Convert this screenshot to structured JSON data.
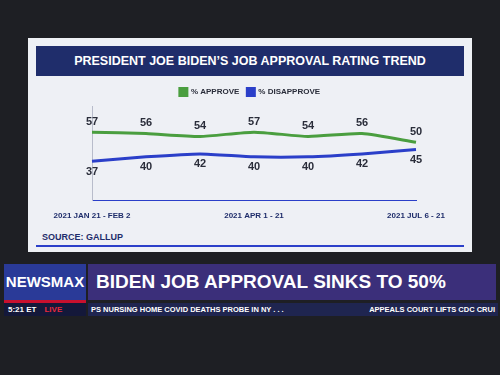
{
  "chart_data": {
    "type": "line",
    "title": "PRESIDENT JOE BIDEN’S JOB APPROVAL RATING TREND",
    "source": "SOURCE: GALLUP",
    "categories": [
      "2021 JAN 21 - FEB 2",
      null,
      null,
      "2021 APR 1 - 21",
      null,
      null,
      "2021 JUL 6 - 21"
    ],
    "series": [
      {
        "name": "% APPROVE",
        "color": "#4a9e3f",
        "values": [
          57,
          56,
          54,
          57,
          54,
          56,
          50
        ]
      },
      {
        "name": "% DISAPPROVE",
        "color": "#2b3fc9",
        "values": [
          37,
          40,
          42,
          40,
          40,
          42,
          45
        ]
      }
    ],
    "ylim": [
      10,
      75
    ],
    "legend": "top",
    "data_labels": true,
    "tick_labels": "x",
    "grid": false
  },
  "banner": {
    "channel": "NEWSMAX",
    "time": "5:21 ET",
    "live": "LIVE",
    "headline": "BIDEN JOB APPROVAL SINKS TO 50%",
    "ticker": [
      "PS NURSING HOME COVID DEATHS PROBE IN NY . . .",
      "APPEALS COURT LIFTS CDC CRUI"
    ]
  }
}
